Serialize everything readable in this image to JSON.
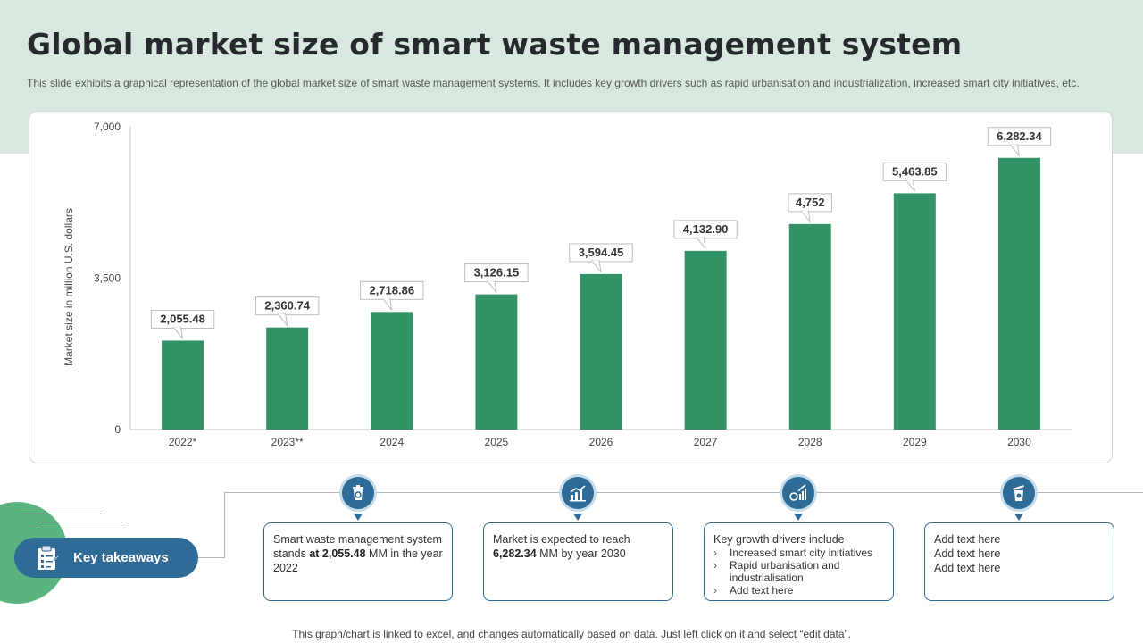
{
  "page": {
    "title": "Global market size of smart waste management system",
    "subtitle": "This slide exhibits a graphical representation of the global market size of smart waste management systems. It includes key growth drivers such as rapid urbanisation and industrialization, increased smart city initiatives, etc.",
    "footnote": "This graph/chart is linked to excel,  and changes automatically based on data. Just left click on it and select “edit data”."
  },
  "chart_data": {
    "type": "bar",
    "categories": [
      "2022*",
      "2023**",
      "2024",
      "2025",
      "2026",
      "2027",
      "2028",
      "2029",
      "2030"
    ],
    "values": [
      2055.48,
      2360.74,
      2718.86,
      3126.15,
      3594.45,
      4132.9,
      4752,
      5463.85,
      6282.34
    ],
    "value_labels": [
      "2,055.48",
      "2,360.74",
      "2,718.86",
      "3,126.15",
      "3,594.45",
      "4,132.90",
      "4,752",
      "5,463.85",
      "6,282.34"
    ],
    "ylabel": "Market size in million U.S. dollars",
    "ylim": [
      0,
      7000
    ],
    "yticks": [
      0,
      3500,
      7000
    ],
    "ytick_labels": [
      "0",
      "3,500",
      "7,000"
    ],
    "bar_color": "#339366",
    "grid": false
  },
  "takeaways": {
    "label": "Key takeaways",
    "boxes": [
      {
        "icon": "recycle-bin-icon",
        "text_pre": "Smart waste management system stands ",
        "text_bold": "at 2,055.48",
        "text_post": " MM in the year 2022"
      },
      {
        "icon": "bar-chart-icon",
        "text_pre": "Market is expected to reach ",
        "text_bold": "6,282.34",
        "text_post": " MM by year 2030"
      },
      {
        "icon": "growth-chart-icon",
        "heading": "Key growth  drivers  include",
        "bullets": [
          "Increased smart city initiatives",
          "Rapid urbanisation and industrialisation",
          "Add text here"
        ]
      },
      {
        "icon": "smart-bin-icon",
        "lines": [
          "Add text here",
          "Add text here",
          "Add text here"
        ]
      }
    ]
  },
  "colors": {
    "accent_blue": "#2e6b96",
    "accent_green": "#5ab47f",
    "band": "#d9e8df"
  }
}
